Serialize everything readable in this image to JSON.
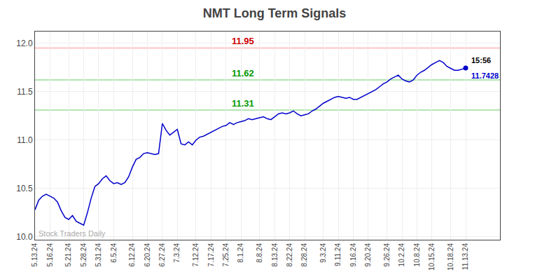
{
  "chart_data": {
    "type": "line",
    "title": "NMT Long Term Signals",
    "categories": [
      "5.13.24",
      null,
      null,
      null,
      "5.16.24",
      null,
      null,
      null,
      null,
      "5.21.24",
      null,
      null,
      null,
      "5.28.24",
      null,
      null,
      null,
      "5.31.24",
      null,
      null,
      null,
      "6.5.24",
      null,
      null,
      null,
      null,
      "6.12.24",
      null,
      null,
      null,
      "6.20.24",
      null,
      null,
      null,
      "6.27.24",
      null,
      null,
      null,
      "7.3.24",
      null,
      null,
      null,
      null,
      "7.12.24",
      null,
      null,
      null,
      "7.17.24",
      null,
      null,
      null,
      "7.25.24",
      null,
      null,
      null,
      "8.1.24",
      null,
      null,
      null,
      null,
      "8.8.24",
      null,
      null,
      null,
      "8.13.24",
      null,
      null,
      null,
      "8.22.24",
      null,
      null,
      null,
      "8.28.24",
      null,
      null,
      null,
      null,
      "9.3.24",
      null,
      null,
      null,
      "9.11.24",
      null,
      null,
      null,
      "9.16.24",
      null,
      null,
      null,
      "9.20.24",
      null,
      null,
      null,
      null,
      "9.26.24",
      null,
      null,
      null,
      "10.2.24",
      null,
      null,
      null,
      "10.8.24",
      null,
      null,
      null,
      "10.15.24",
      null,
      null,
      null,
      null,
      "10.18.24",
      null,
      null,
      null,
      "11.13.24"
    ],
    "values": [
      10.28,
      10.38,
      10.42,
      10.44,
      10.42,
      10.4,
      10.36,
      10.27,
      10.2,
      10.18,
      10.22,
      10.16,
      10.14,
      10.12,
      10.25,
      10.4,
      10.52,
      10.55,
      10.6,
      10.63,
      10.58,
      10.55,
      10.56,
      10.54,
      10.56,
      10.62,
      10.72,
      10.8,
      10.82,
      10.86,
      10.87,
      10.86,
      10.85,
      10.86,
      11.17,
      11.1,
      11.05,
      11.08,
      11.11,
      10.96,
      10.95,
      10.98,
      10.95,
      11.0,
      11.03,
      11.04,
      11.06,
      11.08,
      11.1,
      11.12,
      11.14,
      11.15,
      11.18,
      11.16,
      11.18,
      11.19,
      11.2,
      11.22,
      11.21,
      11.22,
      11.23,
      11.24,
      11.22,
      11.21,
      11.24,
      11.27,
      11.28,
      11.27,
      11.28,
      11.3,
      11.27,
      11.25,
      11.26,
      11.27,
      11.3,
      11.32,
      11.35,
      11.38,
      11.4,
      11.42,
      11.44,
      11.45,
      11.44,
      11.43,
      11.44,
      11.42,
      11.42,
      11.44,
      11.46,
      11.48,
      11.5,
      11.52,
      11.55,
      11.58,
      11.6,
      11.63,
      11.65,
      11.67,
      11.63,
      11.61,
      11.6,
      11.62,
      11.67,
      11.7,
      11.72,
      11.75,
      11.78,
      11.8,
      11.82,
      11.8,
      11.76,
      11.74,
      11.72,
      11.72,
      11.73,
      11.7428
    ],
    "color": "#0000cc",
    "ylim": [
      9.97,
      12.12
    ],
    "yticks": [
      {
        "value": 10.0,
        "label": "10.0"
      },
      10.5,
      {
        "value": 11.0,
        "label": "11.0"
      },
      11.5,
      {
        "value": 12.0,
        "label": "12.0"
      }
    ],
    "grid": true,
    "reference_lines": [
      {
        "value": 11.95,
        "label": "11.95",
        "color": "#ffb3b3",
        "label_color": "#cc0000"
      },
      {
        "value": 11.62,
        "label": "11.62",
        "color": "#99dd99",
        "label_color": "#009900"
      },
      {
        "value": 11.31,
        "label": "11.31",
        "color": "#99dd99",
        "label_color": "#009900"
      }
    ],
    "last_time": {
      "text": "15:56",
      "color": "#000000"
    },
    "last_value_label": {
      "text": "11.7428",
      "color": "#0000cc"
    },
    "watermark": {
      "text": "Stock Traders Daily",
      "color": "#aaaaaa"
    }
  }
}
